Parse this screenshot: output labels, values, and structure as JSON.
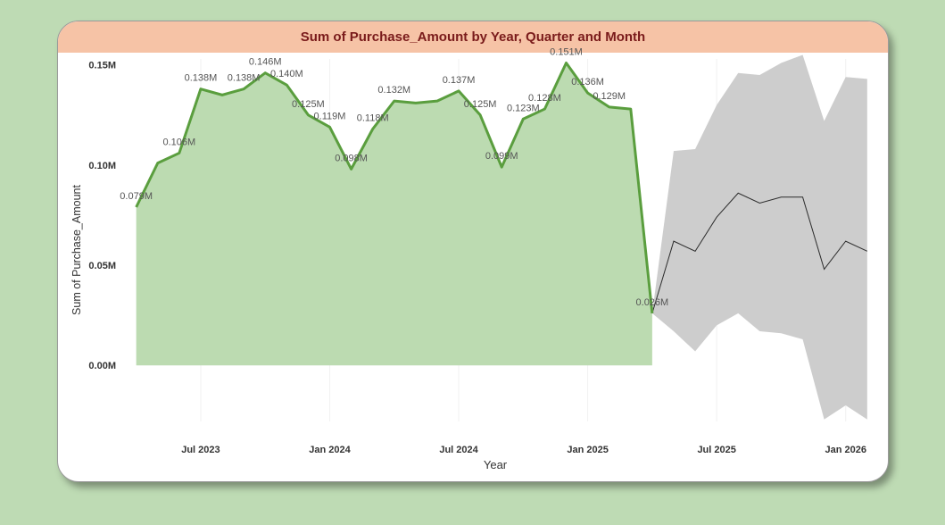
{
  "chart_data": {
    "type": "area",
    "title": "Sum of Purchase_Amount by Year, Quarter and Month",
    "xlabel": "Year",
    "ylabel": "Sum of Purchase_Amount",
    "ylim": [
      -0.028,
      0.153
    ],
    "y_ticks": [
      {
        "value": 0,
        "label": "0.00M"
      },
      {
        "value": 0.05,
        "label": "0.05M"
      },
      {
        "value": 0.1,
        "label": "0.10M"
      },
      {
        "value": 0.15,
        "label": "0.15M"
      }
    ],
    "x_ticks": [
      {
        "month": 6,
        "label": "Jul 2023"
      },
      {
        "month": 12,
        "label": "Jan 2024"
      },
      {
        "month": 18,
        "label": "Jul 2024"
      },
      {
        "month": 24,
        "label": "Jan 2025"
      },
      {
        "month": 30,
        "label": "Jul 2025"
      },
      {
        "month": 36,
        "label": "Jan 2026"
      }
    ],
    "x_range_months": [
      2.35,
      37.05
    ],
    "actual": {
      "start_month": 3,
      "values": [
        0.079,
        0.101,
        0.106,
        0.138,
        0.135,
        0.138,
        0.146,
        0.14,
        0.125,
        0.119,
        0.098,
        0.118,
        0.132,
        0.131,
        0.132,
        0.137,
        0.125,
        0.099,
        0.123,
        0.128,
        0.151,
        0.136,
        0.129,
        0.128,
        0.026
      ],
      "labels": [
        "0.079M",
        "",
        "0.106M",
        "0.138M",
        "",
        "0.138M",
        "0.146M",
        "0.140M",
        "0.125M",
        "0.119M",
        "0.098M",
        "0.118M",
        "0.132M",
        "",
        "",
        "0.137M",
        "0.125M",
        "0.099M",
        "0.123M",
        "0.128M",
        "0.151M",
        "0.136M",
        "0.129M",
        "",
        "0.026M"
      ]
    },
    "forecast": {
      "start_month": 27,
      "values": [
        0.026,
        0.062,
        0.057,
        0.074,
        0.086,
        0.081,
        0.084,
        0.084,
        0.048,
        0.062,
        0.057
      ],
      "upper": [
        0.026,
        0.107,
        0.108,
        0.13,
        0.146,
        0.145,
        0.151,
        0.155,
        0.122,
        0.144,
        0.143
      ],
      "lower": [
        0.026,
        0.017,
        0.007,
        0.02,
        0.026,
        0.017,
        0.016,
        0.013,
        -0.027,
        -0.02,
        -0.027
      ]
    },
    "colors": {
      "line": "#5a9e3e",
      "area": "#bcdbb1",
      "forecast_line": "#2b2b2b",
      "forecast_band": "#cdcdcd",
      "title_bar": "#f6c3a6",
      "title_text": "#7a1b1b",
      "page_bg": "#bedbb4"
    },
    "grid": true
  }
}
